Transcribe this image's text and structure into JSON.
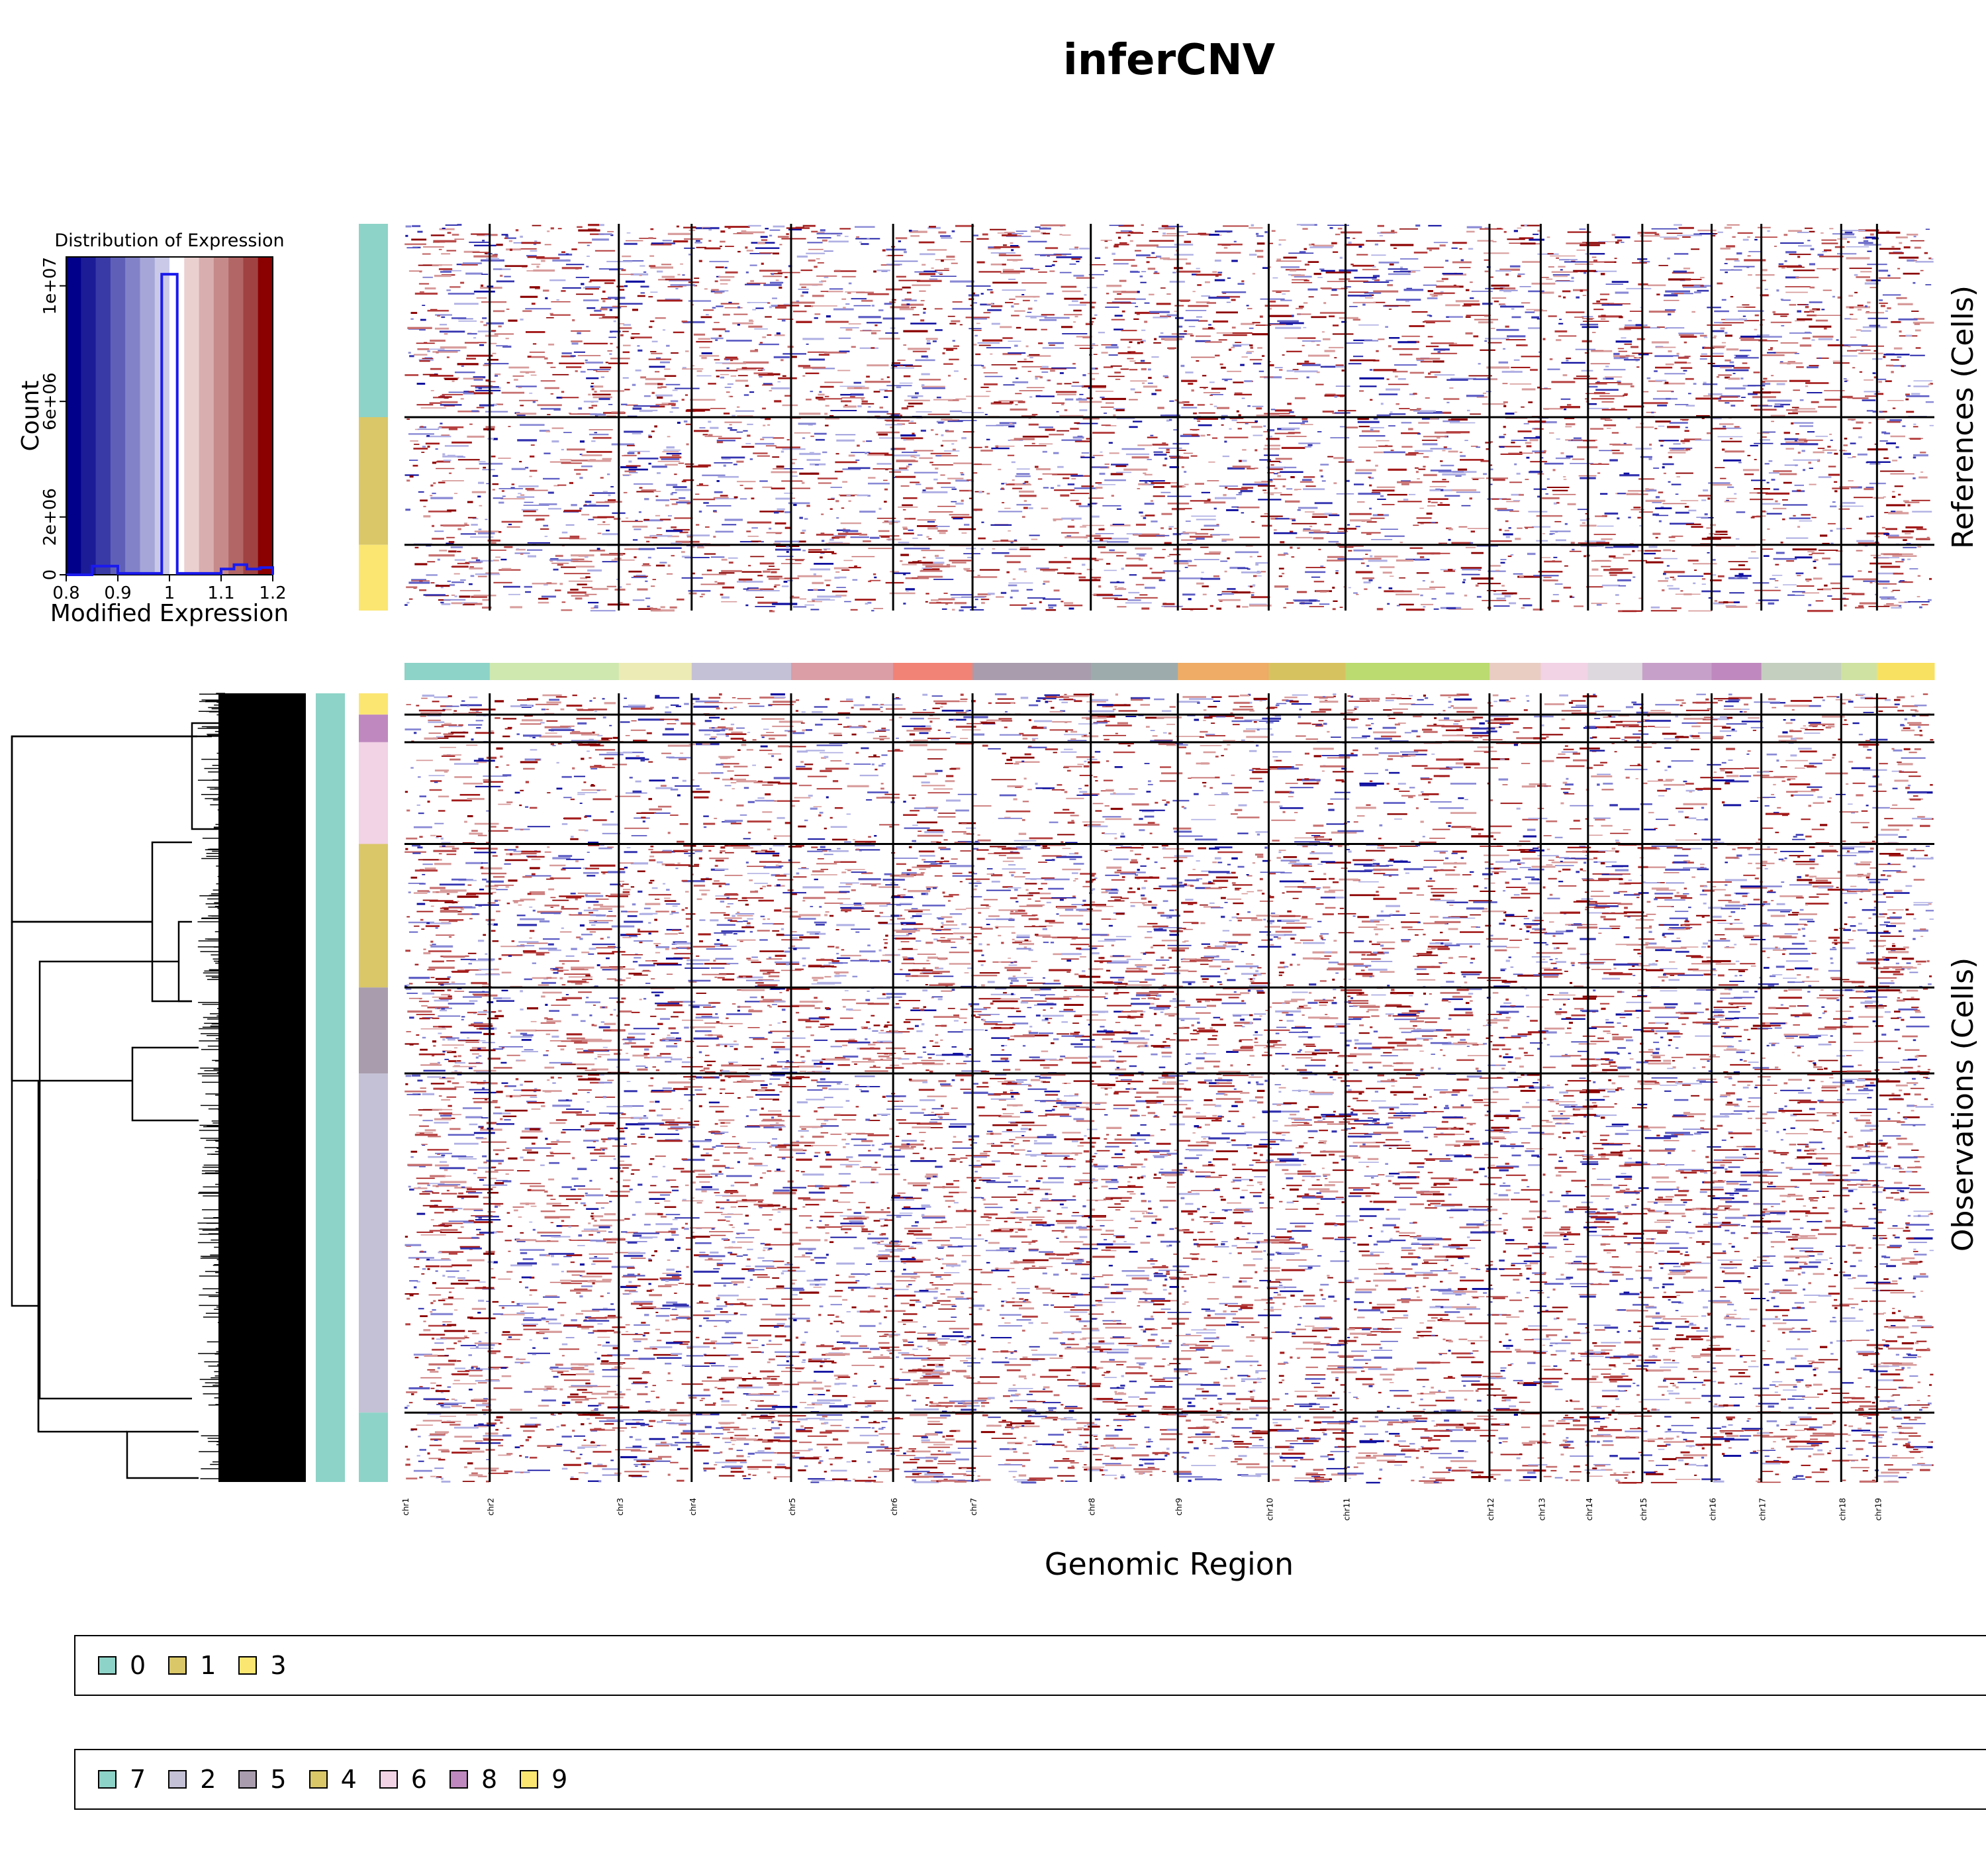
{
  "title": "inferCNV",
  "chart_data": [
    {
      "type": "histogram",
      "title": "Distribution of Expression",
      "xlabel": "Modified Expression",
      "ylabel": "Count",
      "x_ticks": [
        "0.8",
        "0.9",
        "1",
        "1.1",
        "1.2"
      ],
      "y_ticks": [
        "0",
        "2e+06",
        "6e+06",
        "1e+07"
      ],
      "xlim": [
        0.8,
        1.2
      ],
      "ylim": [
        0,
        11000000
      ],
      "color_scale": [
        "#00008B",
        "#1C1C97",
        "#3A3AA6",
        "#5F5FB8",
        "#8282C8",
        "#A6A6D8",
        "#CACAE8",
        "#FFFFFF",
        "#EBD0D0",
        "#D9AEAE",
        "#C68A8A",
        "#B36666",
        "#A04242",
        "#8B0000"
      ],
      "bins": [
        {
          "x0": 0.8,
          "x1": 0.85,
          "count": 0
        },
        {
          "x0": 0.85,
          "x1": 0.9,
          "count": 300000
        },
        {
          "x0": 0.9,
          "x1": 0.985,
          "count": 50000
        },
        {
          "x0": 0.985,
          "x1": 1.015,
          "count": 10400000
        },
        {
          "x0": 1.015,
          "x1": 1.1,
          "count": 50000
        },
        {
          "x0": 1.1,
          "x1": 1.125,
          "count": 200000
        },
        {
          "x0": 1.125,
          "x1": 1.15,
          "count": 350000
        },
        {
          "x0": 1.15,
          "x1": 1.175,
          "count": 200000
        },
        {
          "x0": 1.175,
          "x1": 1.2,
          "count": 250000
        }
      ]
    },
    {
      "type": "heatmap",
      "ylabel_references": "References (Cells)",
      "ylabel_observations": "Observations (Cells)",
      "xlabel": "Genomic Region",
      "chromosomes": [
        {
          "name": "chr1",
          "start": 0.0,
          "end": 0.0557,
          "color": "#8DD3C7"
        },
        {
          "name": "chr2",
          "start": 0.0557,
          "end": 0.1401,
          "color": "#CEE8B0"
        },
        {
          "name": "chr3",
          "start": 0.1401,
          "end": 0.1877,
          "color": "#EDEBB5"
        },
        {
          "name": "chr4",
          "start": 0.1877,
          "end": 0.2527,
          "color": "#C4C1D6"
        },
        {
          "name": "chr5",
          "start": 0.2527,
          "end": 0.3194,
          "color": "#DB9EA6"
        },
        {
          "name": "chr6",
          "start": 0.3194,
          "end": 0.3713,
          "color": "#F18276"
        },
        {
          "name": "chr7",
          "start": 0.3713,
          "end": 0.4486,
          "color": "#A89CAD"
        },
        {
          "name": "chr8",
          "start": 0.4486,
          "end": 0.5055,
          "color": "#9DABAC"
        },
        {
          "name": "chr9",
          "start": 0.5055,
          "end": 0.5649,
          "color": "#EEAC66"
        },
        {
          "name": "chr10",
          "start": 0.5649,
          "end": 0.6151,
          "color": "#D7C260"
        },
        {
          "name": "chr11",
          "start": 0.6151,
          "end": 0.7092,
          "color": "#BBDA70"
        },
        {
          "name": "chr12",
          "start": 0.7092,
          "end": 0.7427,
          "color": "#E9CDC2"
        },
        {
          "name": "chr13",
          "start": 0.7427,
          "end": 0.7736,
          "color": "#F2D2E5"
        },
        {
          "name": "chr14",
          "start": 0.7736,
          "end": 0.8091,
          "color": "#DCD8DE"
        },
        {
          "name": "chr15",
          "start": 0.8091,
          "end": 0.8544,
          "color": "#C7A0C9"
        },
        {
          "name": "chr16",
          "start": 0.8544,
          "end": 0.8869,
          "color": "#BF88BE"
        },
        {
          "name": "chr17",
          "start": 0.8869,
          "end": 0.9391,
          "color": "#C4CFBF"
        },
        {
          "name": "chr18",
          "start": 0.9391,
          "end": 0.9625,
          "color": "#D0E2A1"
        },
        {
          "name": "chr19",
          "start": 0.9625,
          "end": 1.0,
          "color": "#F8E060"
        }
      ],
      "reference_groups": [
        {
          "name": "0",
          "fraction": 0.5,
          "color": "#8DD3C7"
        },
        {
          "name": "1",
          "fraction": 0.33,
          "color": "#D9C768"
        },
        {
          "name": "3",
          "fraction": 0.17,
          "color": "#FBE672"
        }
      ],
      "observation_groups": [
        {
          "name": "9",
          "fraction": 0.027,
          "color": "#FBE672"
        },
        {
          "name": "8",
          "fraction": 0.035,
          "color": "#BF88BE"
        },
        {
          "name": "6",
          "fraction": 0.129,
          "color": "#F2D2E5"
        },
        {
          "name": "4",
          "fraction": 0.182,
          "color": "#D9C768"
        },
        {
          "name": "5",
          "fraction": 0.109,
          "color": "#A89CAD"
        },
        {
          "name": "2",
          "fraction": 0.43,
          "color": "#C4C1D6"
        },
        {
          "name": "7",
          "fraction": 0.088,
          "color": "#8DD3C7"
        }
      ],
      "observation_cluster_color": "#8DD3C7"
    }
  ],
  "legend_references": [
    {
      "label": "0",
      "color": "#8DD3C7"
    },
    {
      "label": "1",
      "color": "#D9C768"
    },
    {
      "label": "3",
      "color": "#FBE672"
    }
  ],
  "legend_observations": [
    {
      "label": "7",
      "color": "#8DD3C7"
    },
    {
      "label": "2",
      "color": "#C4C1D6"
    },
    {
      "label": "5",
      "color": "#A89CAD"
    },
    {
      "label": "4",
      "color": "#D9C768"
    },
    {
      "label": "6",
      "color": "#F2D2E5"
    },
    {
      "label": "8",
      "color": "#BF88BE"
    },
    {
      "label": "9",
      "color": "#FBE672"
    }
  ]
}
